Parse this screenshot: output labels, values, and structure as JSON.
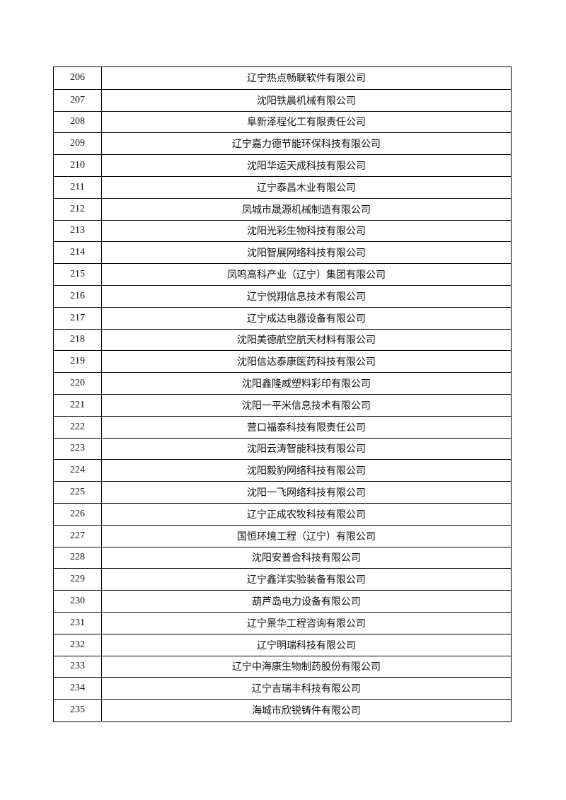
{
  "table": {
    "rows": [
      [
        "206",
        "辽宁热点畅联软件有限公司"
      ],
      [
        "207",
        "沈阳铁晨机械有限公司"
      ],
      [
        "208",
        "阜新泽程化工有限责任公司"
      ],
      [
        "209",
        "辽宁嘉力德节能环保科技有限公司"
      ],
      [
        "210",
        "沈阳华运天成科技有限公司"
      ],
      [
        "211",
        "辽宁泰昌木业有限公司"
      ],
      [
        "212",
        "凤城市晟源机械制造有限公司"
      ],
      [
        "213",
        "沈阳光彩生物科技有限公司"
      ],
      [
        "214",
        "沈阳智展网络科技有限公司"
      ],
      [
        "215",
        "凤鸣高科产业（辽宁）集团有限公司"
      ],
      [
        "216",
        "辽宁悦翔信息技术有限公司"
      ],
      [
        "217",
        "辽宁成达电器设备有限公司"
      ],
      [
        "218",
        "沈阳美德航空航天材料有限公司"
      ],
      [
        "219",
        "沈阳信达泰康医药科技有限公司"
      ],
      [
        "220",
        "沈阳鑫隆威塑料彩印有限公司"
      ],
      [
        "221",
        "沈阳一平米信息技术有限公司"
      ],
      [
        "222",
        "营口福泰科技有限责任公司"
      ],
      [
        "223",
        "沈阳云涛智能科技有限公司"
      ],
      [
        "224",
        "沈阳毅豹网络科技有限公司"
      ],
      [
        "225",
        "沈阳一飞网络科技有限公司"
      ],
      [
        "226",
        "辽宁正成农牧科技有限公司"
      ],
      [
        "227",
        "国恒环境工程（辽宁）有限公司"
      ],
      [
        "228",
        "沈阳安普合科技有限公司"
      ],
      [
        "229",
        "辽宁鑫洋实验装备有限公司"
      ],
      [
        "230",
        "葫芦岛电力设备有限公司"
      ],
      [
        "231",
        "辽宁景华工程咨询有限公司"
      ],
      [
        "232",
        "辽宁明瑞科技有限公司"
      ],
      [
        "233",
        "辽宁中海康生物制药股份有限公司"
      ],
      [
        "234",
        "辽宁吉瑞丰科技有限公司"
      ],
      [
        "235",
        "海城市欣锐铸件有限公司"
      ]
    ]
  }
}
